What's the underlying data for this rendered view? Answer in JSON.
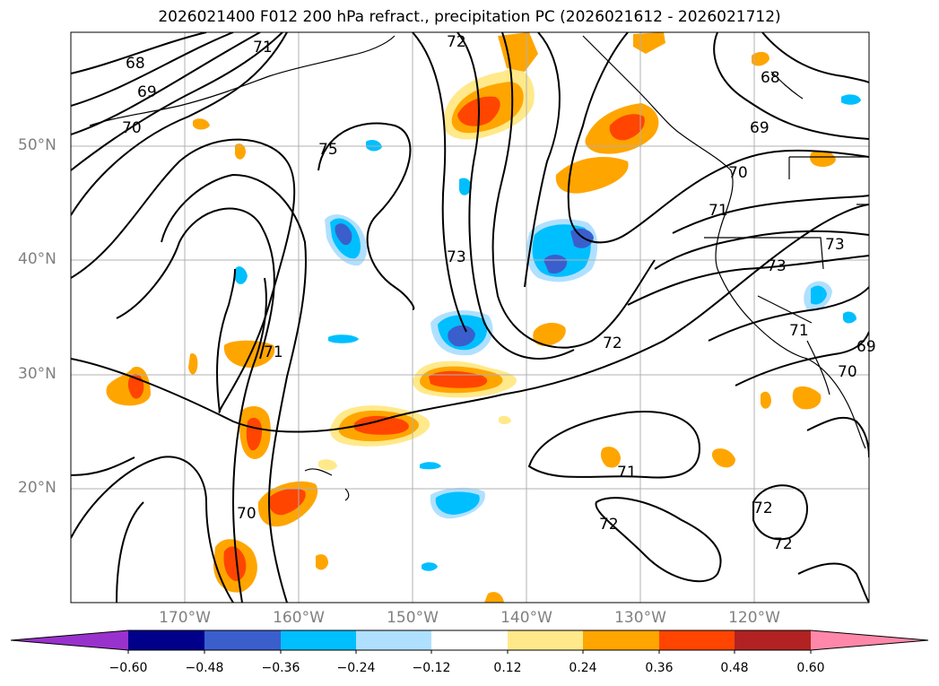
{
  "title": "2026021400 F012 200 hPa refract., precipitation PC (2026021612 - 2026021712)",
  "map": {
    "region": "North Pacific",
    "projection": "PlateCarree",
    "lon_range": [
      -180,
      -110
    ],
    "lat_range": [
      10,
      60
    ],
    "gridlines": true,
    "coastlines": true,
    "lat_labels": [
      "50°N",
      "40°N",
      "30°N",
      "20°N"
    ],
    "lon_labels": [
      "170°W",
      "160°W",
      "150°W",
      "140°W",
      "130°W",
      "120°W"
    ],
    "contour_variable": "200 hPa refractivity",
    "contour_labels": [
      "68",
      "69",
      "70",
      "71",
      "72",
      "75",
      "73",
      "68",
      "69",
      "70",
      "71",
      "73",
      "71",
      "72",
      "71",
      "70",
      "69",
      "70",
      "73",
      "72",
      "71",
      "72",
      "72"
    ],
    "colors": {
      "contour": "#000000",
      "grid": "#b0b0b0",
      "coast": "#000000"
    }
  },
  "colorbar": {
    "extend": "both",
    "ticks": [
      "−0.60",
      "−0.48",
      "−0.36",
      "−0.24",
      "−0.12",
      "0.12",
      "0.24",
      "0.36",
      "0.48",
      "0.60"
    ],
    "bins": [
      {
        "color": "#9932cc"
      },
      {
        "color": "#00008b"
      },
      {
        "color": "#3a5fcd"
      },
      {
        "color": "#00bfff"
      },
      {
        "color": "#b0e0ff"
      },
      {
        "color": "#ffffff"
      },
      {
        "color": "#ffe98a"
      },
      {
        "color": "#ffa500"
      },
      {
        "color": "#ff4500"
      },
      {
        "color": "#b22222"
      },
      {
        "color": "#ff88aa"
      }
    ]
  }
}
